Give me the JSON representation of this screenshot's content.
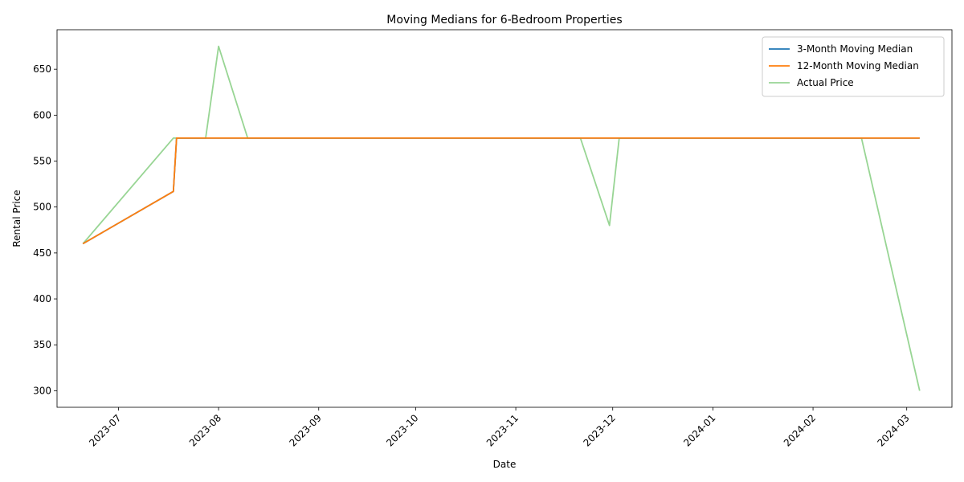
{
  "chart_data": {
    "type": "line",
    "title": "Moving Medians for 6-Bedroom Properties",
    "xlabel": "Date",
    "ylabel": "Rental Price",
    "xlim": [
      "2023-06-12",
      "2024-03-15"
    ],
    "ylim": [
      282,
      693
    ],
    "x_ticks": [
      "2023-07-01",
      "2023-08-01",
      "2023-09-01",
      "2023-10-01",
      "2023-11-01",
      "2023-12-01",
      "2024-01-01",
      "2024-02-01",
      "2024-03-01"
    ],
    "x_tick_labels": [
      "2023-07",
      "2023-08",
      "2023-09",
      "2023-10",
      "2023-11",
      "2023-12",
      "2024-01",
      "2024-02",
      "2024-03"
    ],
    "y_ticks": [
      300,
      350,
      400,
      450,
      500,
      550,
      600,
      650
    ],
    "grid": false,
    "legend_position": "top-right",
    "series": [
      {
        "name": "3-Month Moving Median",
        "color": "#1f77b4",
        "points": [
          {
            "x": "2023-06-20",
            "y": 460
          },
          {
            "x": "2023-07-18",
            "y": 517
          },
          {
            "x": "2023-07-19",
            "y": 575
          },
          {
            "x": "2024-03-05",
            "y": 575
          }
        ]
      },
      {
        "name": "12-Month Moving Median",
        "color": "#ff7f0e",
        "points": [
          {
            "x": "2023-06-20",
            "y": 460
          },
          {
            "x": "2023-07-18",
            "y": 517
          },
          {
            "x": "2023-07-19",
            "y": 575
          },
          {
            "x": "2024-03-05",
            "y": 575
          }
        ]
      },
      {
        "name": "Actual Price",
        "color": "#98d594",
        "points": [
          {
            "x": "2023-06-20",
            "y": 460
          },
          {
            "x": "2023-07-18",
            "y": 575
          },
          {
            "x": "2023-07-28",
            "y": 575
          },
          {
            "x": "2023-08-01",
            "y": 675
          },
          {
            "x": "2023-08-10",
            "y": 575
          },
          {
            "x": "2023-11-21",
            "y": 575
          },
          {
            "x": "2023-11-30",
            "y": 480
          },
          {
            "x": "2023-12-03",
            "y": 575
          },
          {
            "x": "2024-02-16",
            "y": 575
          },
          {
            "x": "2024-03-05",
            "y": 300
          }
        ]
      }
    ]
  }
}
